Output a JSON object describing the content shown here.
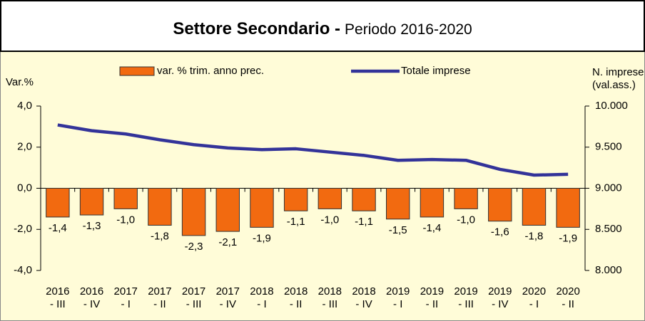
{
  "chart_data": {
    "type": "bar_line",
    "title": "Settore Secondario -",
    "subtitle": "Periodo 2016-2020",
    "ylabel": "Var.%",
    "y2label": [
      "N. imprese",
      "(val.ass.)"
    ],
    "categories": [
      [
        "2016",
        "- III"
      ],
      [
        "2016",
        "- IV"
      ],
      [
        "2017",
        "- I"
      ],
      [
        "2017",
        "- II"
      ],
      [
        "2017",
        "- III"
      ],
      [
        "2017",
        "- IV"
      ],
      [
        "2018",
        "- I"
      ],
      [
        "2018",
        "- II"
      ],
      [
        "2018",
        "- III"
      ],
      [
        "2018",
        "- IV"
      ],
      [
        "2019",
        "- I"
      ],
      [
        "2019",
        "- II"
      ],
      [
        "2019",
        "- III"
      ],
      [
        "2019",
        "- IV"
      ],
      [
        "2020",
        "- I"
      ],
      [
        "2020",
        "- II"
      ]
    ],
    "series": [
      {
        "name": "var. % trim. anno prec.",
        "color": "#f26a10",
        "type": "bar",
        "values": [
          -1.4,
          -1.3,
          -1.0,
          -1.8,
          -2.3,
          -2.1,
          -1.9,
          -1.1,
          -1.0,
          -1.1,
          -1.5,
          -1.4,
          -1.0,
          -1.6,
          -1.8,
          -1.9
        ],
        "value_labels": [
          "-1,4",
          "-1,3",
          "-1,0",
          "-1,8",
          "-2,3",
          "-2,1",
          "-1,9",
          "-1,1",
          "-1,0",
          "-1,1",
          "-1,5",
          "-1,4",
          "-1,0",
          "-1,6",
          "-1,8",
          "-1,9"
        ]
      },
      {
        "name": "Totale imprese",
        "color": "#333399",
        "type": "line",
        "axis": "y2",
        "values": [
          9770,
          9700,
          9660,
          9590,
          9530,
          9490,
          9470,
          9480,
          9440,
          9400,
          9340,
          9350,
          9340,
          9230,
          9160,
          9170
        ]
      }
    ],
    "ylim": [
      -4,
      4
    ],
    "yticks": [
      {
        "value": 4,
        "label": "4,0"
      },
      {
        "value": 2,
        "label": "2,0"
      },
      {
        "value": 0,
        "label": "0,0"
      },
      {
        "value": -2,
        "label": "-2,0"
      },
      {
        "value": -4,
        "label": "-4,0"
      }
    ],
    "y2lim": [
      8000,
      10000
    ],
    "y2ticks": [
      {
        "value": 10000,
        "label": "10.000"
      },
      {
        "value": 9500,
        "label": "9.500"
      },
      {
        "value": 9000,
        "label": "9.000"
      },
      {
        "value": 8500,
        "label": "8.500"
      },
      {
        "value": 8000,
        "label": "8.000"
      }
    ]
  }
}
